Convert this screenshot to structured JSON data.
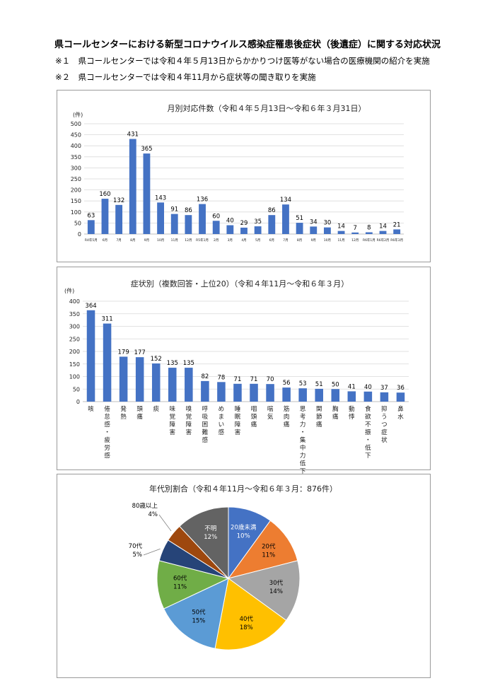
{
  "document": {
    "title": "県コールセンターにおける新型コロナウイルス感染症罹患後症状（後遺症）に関する対応状況",
    "notes": [
      "※１　県コールセンターでは令和４年５月13日からかかりつけ医等がない場合の医療機関の紹介を実施",
      "※２　県コールセンターでは令和４年11月から症状等の聞き取りを実施"
    ]
  },
  "chart_data": [
    {
      "type": "bar",
      "title": "月別対応件数（令和４年５月13日～令和６年３月31日）",
      "ylabel": "(件)",
      "ylim": [
        0,
        500
      ],
      "yticks": [
        0,
        50,
        100,
        150,
        200,
        250,
        300,
        350,
        400,
        450,
        500
      ],
      "categories": [
        "R4年5月",
        "6月",
        "7月",
        "8月",
        "9月",
        "10月",
        "11月",
        "12月",
        "R5年1月",
        "2月",
        "3月",
        "4月",
        "5月",
        "6月",
        "7月",
        "8月",
        "9月",
        "10月",
        "11月",
        "12月",
        "R6年1月",
        "R6年2月",
        "R6年3月"
      ],
      "values": [
        63,
        160,
        132,
        431,
        365,
        143,
        91,
        86,
        136,
        60,
        40,
        29,
        35,
        86,
        134,
        51,
        34,
        30,
        14,
        7,
        8,
        14,
        21
      ],
      "bar_color": "#4472c4",
      "grid": true
    },
    {
      "type": "bar",
      "title": "症状別（複数回答・上位20）（令和４年11月～令和６年３月）",
      "ylabel": "(件)",
      "ylim": [
        0,
        400
      ],
      "yticks": [
        0,
        50,
        100,
        150,
        200,
        250,
        300,
        350,
        400
      ],
      "categories": [
        "咳",
        "倦怠感・疲労感",
        "発熱",
        "頭痛",
        "痰",
        "味覚障害",
        "嗅覚障害",
        "呼吸困難感",
        "めまい感",
        "睡眠障害",
        "咽頭痛",
        "喘気",
        "筋肉痛",
        "思考力・集中力低下",
        "関節痛",
        "胸痛",
        "動悸",
        "食欲不振・低下",
        "抑うつ症状",
        "鼻水"
      ],
      "values": [
        364,
        311,
        179,
        177,
        152,
        135,
        135,
        82,
        78,
        71,
        71,
        70,
        56,
        53,
        51,
        50,
        41,
        40,
        37,
        36
      ],
      "bar_color": "#4472c4",
      "grid": true
    },
    {
      "type": "pie",
      "title": "年代別割合（令和４年11月～令和６年３月：876件）",
      "slices": [
        {
          "label": "20歳未満",
          "value": 10,
          "pct": "10%",
          "color": "#4472c4"
        },
        {
          "label": "20代",
          "value": 11,
          "pct": "11%",
          "color": "#ed7d31"
        },
        {
          "label": "30代",
          "value": 14,
          "pct": "14%",
          "color": "#a5a5a5"
        },
        {
          "label": "40代",
          "value": 18,
          "pct": "18%",
          "color": "#ffc000"
        },
        {
          "label": "50代",
          "value": 15,
          "pct": "15%",
          "color": "#5b9bd5"
        },
        {
          "label": "60代",
          "value": 11,
          "pct": "11%",
          "color": "#70ad47"
        },
        {
          "label": "70代",
          "value": 5,
          "pct": "5%",
          "color": "#264478"
        },
        {
          "label": "80歳以上",
          "value": 4,
          "pct": "4%",
          "color": "#9e480e"
        },
        {
          "label": "不明",
          "value": 12,
          "pct": "12%",
          "color": "#636363"
        }
      ]
    }
  ]
}
